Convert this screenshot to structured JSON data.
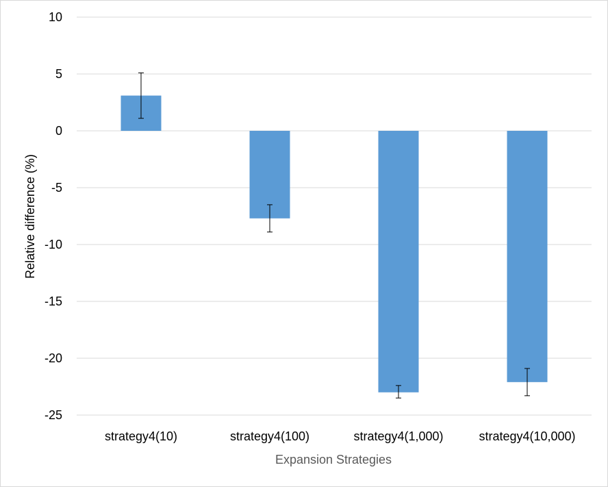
{
  "chart_data": {
    "type": "bar",
    "title": "",
    "xlabel": "Expansion Strategies",
    "ylabel": "Relative difference (%)",
    "ylim": [
      -25,
      10
    ],
    "yticks": [
      10,
      5,
      0,
      -5,
      -10,
      -15,
      -20,
      -25
    ],
    "grid": true,
    "legend": "none",
    "categories": [
      "strategy4(10)",
      "strategy4(100)",
      "strategy4(1,000)",
      "strategy4(10,000)"
    ],
    "values": [
      3.1,
      -7.7,
      -23.0,
      -22.1
    ],
    "error_low": [
      1.1,
      -8.9,
      -23.5,
      -23.3
    ],
    "error_high": [
      5.1,
      -6.5,
      -22.4,
      -20.9
    ],
    "colors": {
      "bar": "#5b9bd5",
      "grid": "#d9d9d9",
      "error_bar": "#000000"
    }
  }
}
